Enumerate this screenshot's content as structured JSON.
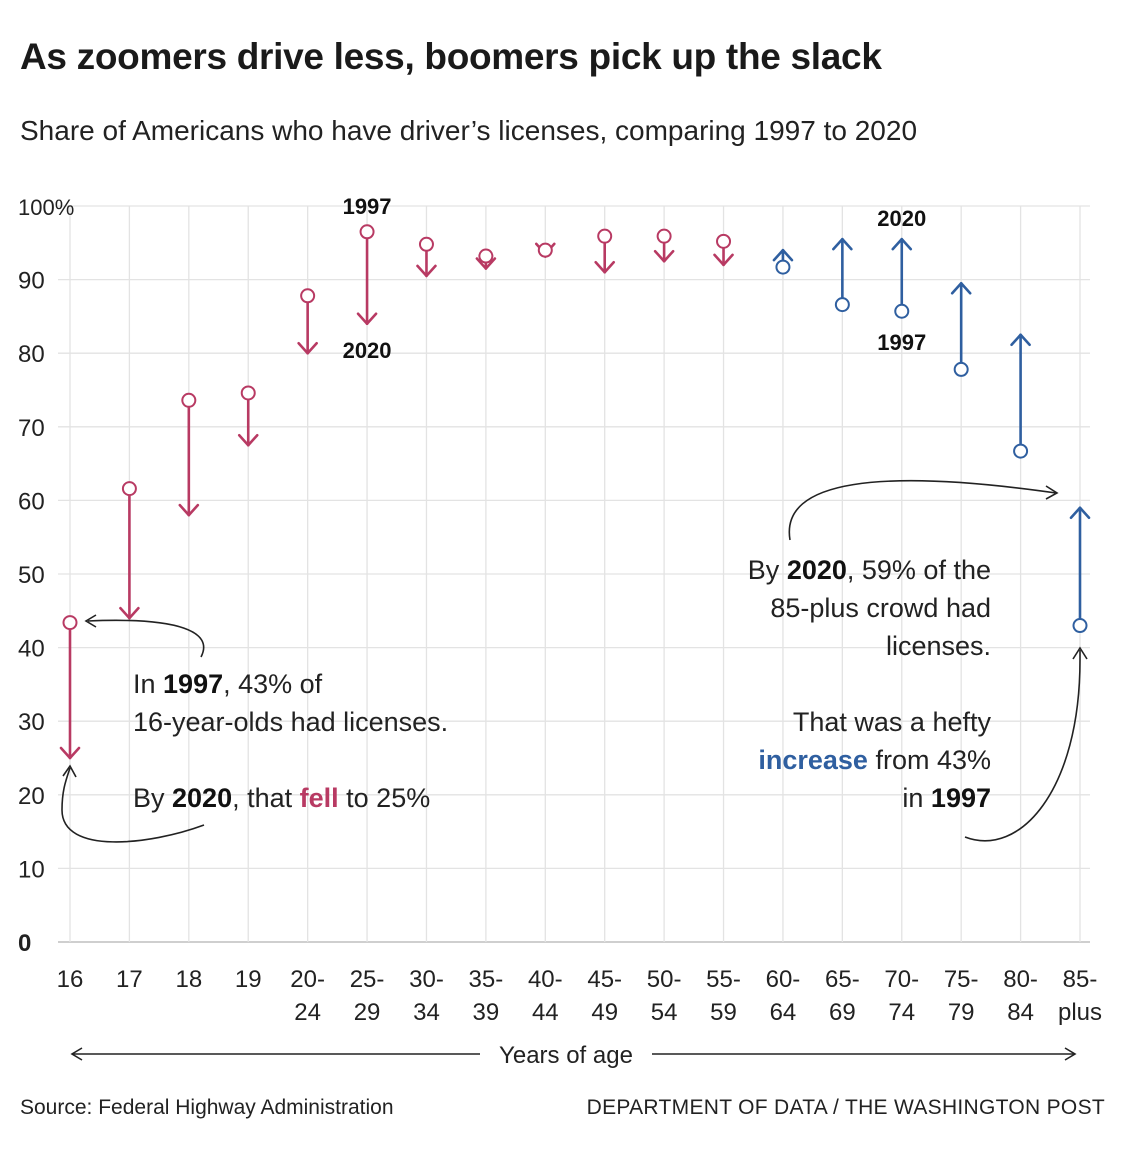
{
  "title": "As zoomers drive less, boomers pick up the slack",
  "subtitle": "Share of Americans who have driver’s licenses, comparing 1997 to 2020",
  "chart_data": {
    "type": "arrow",
    "categories": [
      [
        "16"
      ],
      [
        "17"
      ],
      [
        "18"
      ],
      [
        "19"
      ],
      [
        "20-",
        "24"
      ],
      [
        "25-",
        "29"
      ],
      [
        "30-",
        "34"
      ],
      [
        "35-",
        "39"
      ],
      [
        "40-",
        "44"
      ],
      [
        "45-",
        "49"
      ],
      [
        "50-",
        "54"
      ],
      [
        "55-",
        "59"
      ],
      [
        "60-",
        "64"
      ],
      [
        "65-",
        "69"
      ],
      [
        "70-",
        "74"
      ],
      [
        "75-",
        "79"
      ],
      [
        "80-",
        "84"
      ],
      [
        "85-",
        "plus"
      ]
    ],
    "series": [
      {
        "name": "1997",
        "values": [
          43.4,
          61.6,
          73.6,
          74.6,
          87.8,
          96.5,
          94.8,
          93.2,
          94.0,
          95.9,
          95.9,
          95.2,
          91.7,
          86.6,
          85.7,
          77.8,
          66.7,
          43.0
        ]
      },
      {
        "name": "2020",
        "values": [
          25.0,
          44.0,
          58.0,
          67.5,
          80.0,
          84.0,
          90.5,
          91.5,
          93.5,
          91.0,
          92.5,
          92.0,
          94.0,
          95.5,
          95.5,
          89.5,
          82.5,
          59.0
        ]
      }
    ],
    "ylim": [
      0,
      100
    ],
    "ytick_labels": [
      "0",
      "10",
      "20",
      "30",
      "40",
      "50",
      "60",
      "70",
      "80",
      "90",
      "100%"
    ],
    "xlabel": "Years of age",
    "year_labels": {
      "early": "1997",
      "late": "2020"
    },
    "colors": {
      "decrease": "#b83a63",
      "increase": "#2f5fa0",
      "grid": "#e3e3e3",
      "baseline": "#cfcfcf"
    },
    "grid": true
  },
  "annotations": {
    "left": {
      "line1_pre": "In ",
      "line1_year": "1997",
      "line1_post": ", 43% of",
      "line2": "16-year-olds had licenses.",
      "line3_pre": "By ",
      "line3_year": "2020",
      "line3_mid": ", that ",
      "line3_word": "fell",
      "line3_post": " to 25%"
    },
    "right": {
      "line1_pre": "By ",
      "line1_year": "2020",
      "line1_post": ", 59% of the",
      "line2": "85-plus crowd had",
      "line3": "licenses.",
      "line4": "That was a hefty",
      "line5_word": "increase",
      "line5_post": " from 43%",
      "line6_pre": "in ",
      "line6_year": "1997"
    }
  },
  "source": "Source: Federal Highway Administration",
  "credit": "DEPARTMENT OF DATA / THE WASHINGTON POST"
}
